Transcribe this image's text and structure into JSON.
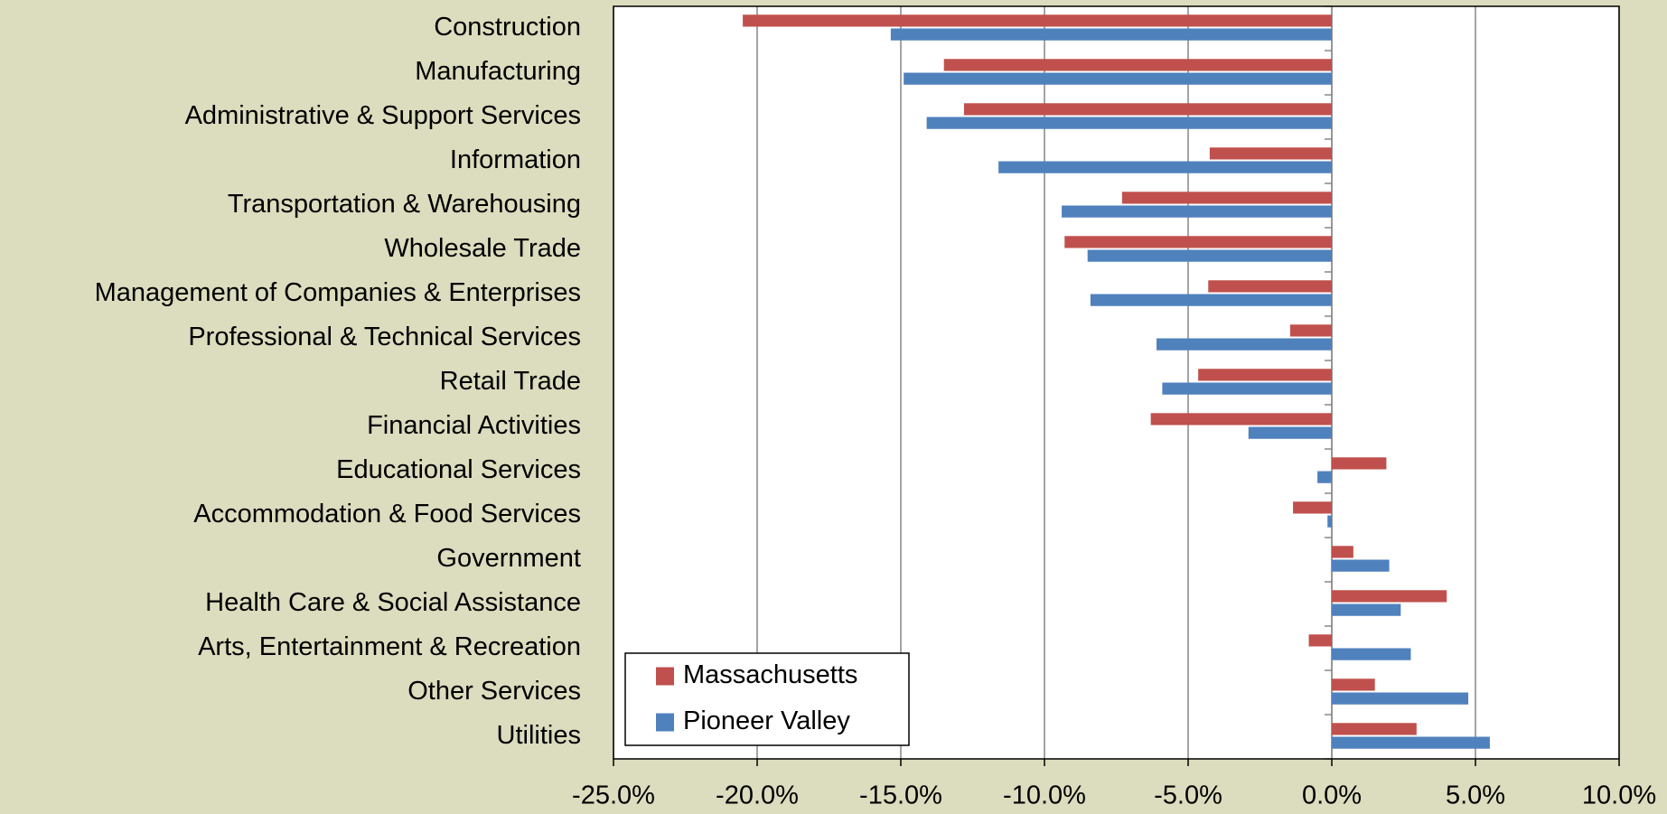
{
  "chart_data": {
    "type": "hbar",
    "categories": [
      "Construction",
      "Manufacturing",
      "Administrative & Support Services",
      "Information",
      "Transportation & Warehousing",
      "Wholesale Trade",
      "Management of Companies & Enterprises",
      "Professional & Technical Services",
      "Retail Trade",
      "Financial Activities",
      "Educational Services",
      "Accommodation & Food Services",
      "Government",
      "Health Care & Social Assistance",
      "Arts, Entertainment & Recreation",
      "Other Services",
      "Utilities"
    ],
    "series": [
      {
        "name": "Massachusetts",
        "color": "#c0504d",
        "values": [
          -20.5,
          -13.5,
          -12.8,
          -4.25,
          -7.3,
          -9.3,
          -4.3,
          -1.45,
          -4.65,
          -6.3,
          1.9,
          -1.35,
          0.75,
          4.0,
          -0.8,
          1.5,
          2.95
        ]
      },
      {
        "name": "Pioneer Valley",
        "color": "#4f81bd",
        "values": [
          -15.35,
          -14.9,
          -14.1,
          -11.6,
          -9.4,
          -8.5,
          -8.4,
          -6.1,
          -5.9,
          -2.9,
          -0.5,
          -0.15,
          2.0,
          2.4,
          2.75,
          4.75,
          5.5
        ]
      }
    ],
    "xlim": [
      -25,
      10
    ],
    "xticks": [
      {
        "value": -25,
        "label": "-25.0%"
      },
      {
        "value": -20,
        "label": "-20.0%"
      },
      {
        "value": -15,
        "label": "-15.0%"
      },
      {
        "value": -10,
        "label": "-10.0%"
      },
      {
        "value": -5,
        "label": "-5.0%"
      },
      {
        "value": 0,
        "label": "0.0%"
      },
      {
        "value": 5,
        "label": "5.0%"
      },
      {
        "value": 10,
        "label": "10.0%"
      }
    ],
    "grid": true,
    "legend": "lower-left"
  }
}
